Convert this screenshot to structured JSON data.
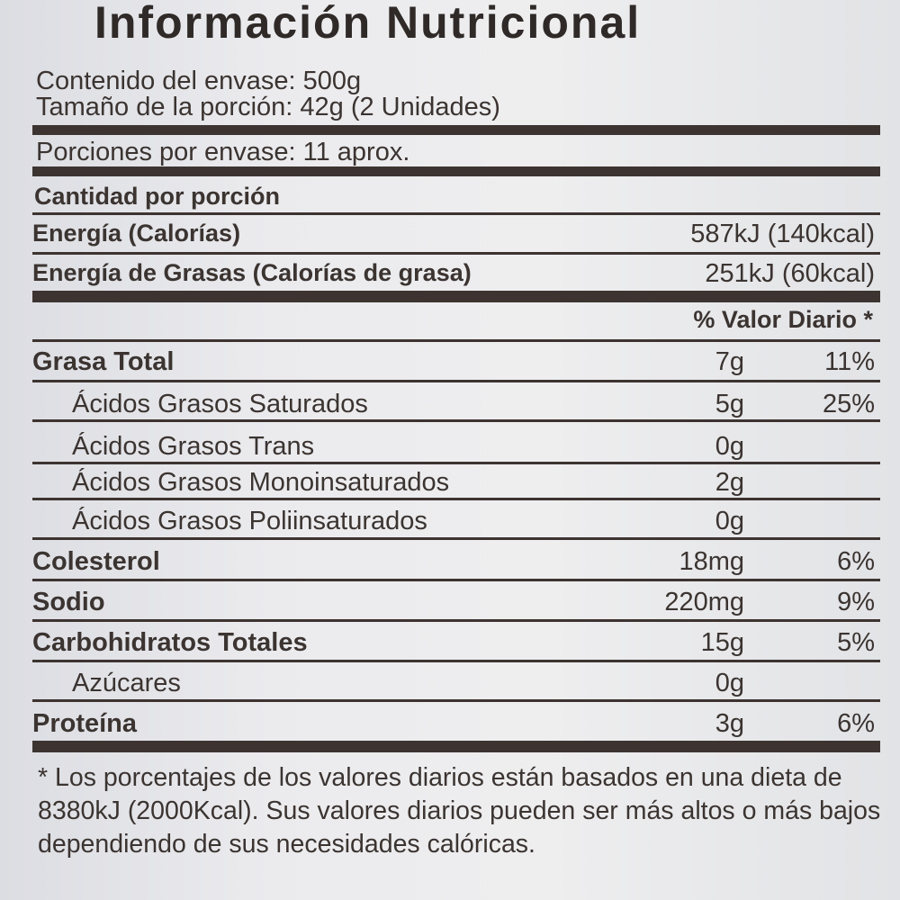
{
  "title": "Información Nutricional",
  "header": {
    "container_content": "Contenido del envase: 500g",
    "serving_size": "Tamaño de la porción: 42g (2 Unidades)",
    "servings_per_container": "Porciones por envase: 11 aprox."
  },
  "amount_per_serving": "Cantidad por porción",
  "energy": [
    {
      "label": "Energía (Calorías)",
      "value": "587kJ (140kcal)"
    },
    {
      "label": "Energía de Grasas (Calorías de grasa)",
      "value": "251kJ (60kcal)"
    }
  ],
  "daily_value_header": "% Valor Diario *",
  "nutrients": [
    {
      "name": "Grasa Total",
      "amount": "7g",
      "dv": "11%",
      "bold": true,
      "indent": false
    },
    {
      "name": "Ácidos Grasos Saturados",
      "amount": "5g",
      "dv": "25%",
      "bold": false,
      "indent": true
    },
    {
      "name": "Ácidos Grasos Trans",
      "amount": "0g",
      "dv": "",
      "bold": false,
      "indent": true
    },
    {
      "name": "Ácidos Grasos Monoinsaturados",
      "amount": "2g",
      "dv": "",
      "bold": false,
      "indent": true
    },
    {
      "name": "Ácidos Grasos Poliinsaturados",
      "amount": "0g",
      "dv": "",
      "bold": false,
      "indent": true
    },
    {
      "name": "Colesterol",
      "amount": "18mg",
      "dv": "6%",
      "bold": true,
      "indent": false
    },
    {
      "name": "Sodio",
      "amount": "220mg",
      "dv": "9%",
      "bold": true,
      "indent": false
    },
    {
      "name": "Carbohidratos Totales",
      "amount": "15g",
      "dv": "5%",
      "bold": true,
      "indent": false
    },
    {
      "name": "Azúcares",
      "amount": "0g",
      "dv": "",
      "bold": false,
      "indent": true
    },
    {
      "name": "Proteína",
      "amount": "3g",
      "dv": "6%",
      "bold": true,
      "indent": false
    }
  ],
  "footnote": "* Los porcentajes de los valores diarios están basados en una dieta de 8380kJ (2000Kcal). Sus valores diarios pueden ser más altos o más bajos dependiendo de sus necesidades calóricas."
}
